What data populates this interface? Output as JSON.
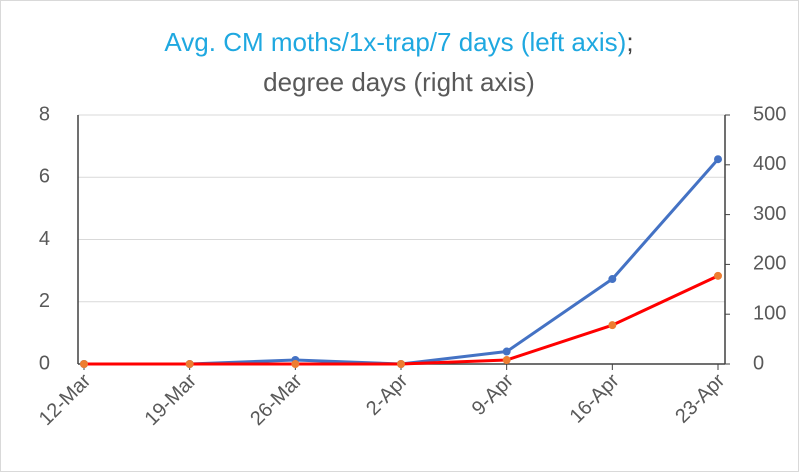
{
  "chart_data": {
    "type": "line",
    "title": [
      {
        "text": "Avg. CM moths/1x-trap/7 days (left axis)",
        "color": "#1fa8e0"
      },
      {
        "text": ";",
        "color": "#404040"
      },
      {
        "text": "degree days (right axis)",
        "color": "#ff0000"
      }
    ],
    "categories": [
      "12-Mar",
      "19-Mar",
      "26-Mar",
      "2-Apr",
      "9-Apr",
      "16-Apr",
      "23-Apr"
    ],
    "series": [
      {
        "name": "Avg. CM moths/1x-trap/7 days",
        "color": "#4472c4",
        "marker_color": "#4472c4",
        "axis": "y",
        "values": [
          0,
          0,
          0.13,
          0,
          0.4,
          2.73,
          6.58
        ]
      },
      {
        "name": "degree days",
        "color": "#ff0000",
        "marker_color": "#ed7d31",
        "axis": "y2",
        "values": [
          0,
          0,
          0,
          0,
          8,
          78,
          177
        ]
      }
    ],
    "ylim": [
      0,
      8
    ],
    "yticks": [
      0,
      2,
      4,
      6,
      8
    ],
    "y2lim": [
      0,
      500
    ],
    "y2ticks": [
      0,
      100,
      200,
      300,
      400,
      500
    ],
    "grid": true
  }
}
